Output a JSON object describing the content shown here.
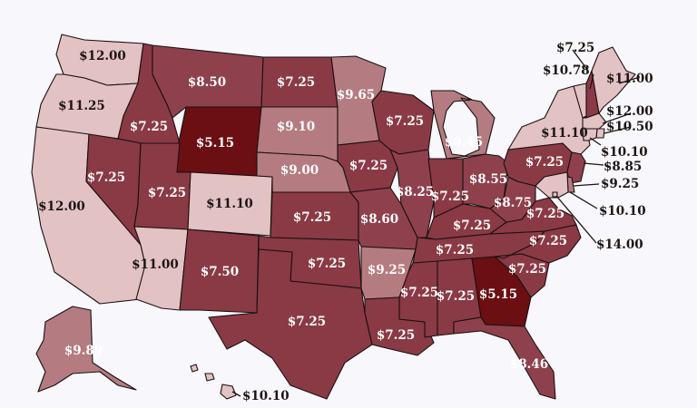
{
  "title_fragment": "",
  "colors": {
    "band_5_15": "#6b0f12",
    "band_7": "#8a3a45",
    "band_8": "#8e414c",
    "band_9": "#b47c80",
    "band_10_plus": "#e3c2c4",
    "background": "#f8f7fb",
    "border": "#1a1010"
  },
  "states": [
    {
      "id": "WA",
      "wage": "$12.00"
    },
    {
      "id": "OR",
      "wage": "$11.25"
    },
    {
      "id": "CA",
      "wage": "$12.00"
    },
    {
      "id": "ID",
      "wage": "$7.25"
    },
    {
      "id": "NV",
      "wage": "$7.25"
    },
    {
      "id": "MT",
      "wage": "$8.50"
    },
    {
      "id": "WY",
      "wage": "$5.15"
    },
    {
      "id": "UT",
      "wage": "$7.25"
    },
    {
      "id": "CO",
      "wage": "$11.10"
    },
    {
      "id": "AZ",
      "wage": "$11.00"
    },
    {
      "id": "NM",
      "wage": "$7.50"
    },
    {
      "id": "ND",
      "wage": "$7.25"
    },
    {
      "id": "SD",
      "wage": "$9.10"
    },
    {
      "id": "NE",
      "wage": "$9.00"
    },
    {
      "id": "KS",
      "wage": "$7.25"
    },
    {
      "id": "OK",
      "wage": "$7.25"
    },
    {
      "id": "TX",
      "wage": "$7.25"
    },
    {
      "id": "MN",
      "wage": "$9.65"
    },
    {
      "id": "IA",
      "wage": "$7.25"
    },
    {
      "id": "MO",
      "wage": "$8.60"
    },
    {
      "id": "AR",
      "wage": "$9.25"
    },
    {
      "id": "LA",
      "wage": "$7.25"
    },
    {
      "id": "WI",
      "wage": "$7.25"
    },
    {
      "id": "IL",
      "wage": "$8.25"
    },
    {
      "id": "MI",
      "wage": "$9.45"
    },
    {
      "id": "IN",
      "wage": "$7.25"
    },
    {
      "id": "OH",
      "wage": "$8.55"
    },
    {
      "id": "KY",
      "wage": "$7.25"
    },
    {
      "id": "TN",
      "wage": "$7.25"
    },
    {
      "id": "MS",
      "wage": "$7.25"
    },
    {
      "id": "AL",
      "wage": "$7.25"
    },
    {
      "id": "GA",
      "wage": "$5.15"
    },
    {
      "id": "FL",
      "wage": "$8.46"
    },
    {
      "id": "SC",
      "wage": "$7.25"
    },
    {
      "id": "NC",
      "wage": "$7.25"
    },
    {
      "id": "VA",
      "wage": "$7.25"
    },
    {
      "id": "WV",
      "wage": "$8.75"
    },
    {
      "id": "PA",
      "wage": "$7.25"
    },
    {
      "id": "NY",
      "wage": "$11.10"
    },
    {
      "id": "VT",
      "wage": "$10.78"
    },
    {
      "id": "NH",
      "wage": "$7.25"
    },
    {
      "id": "ME",
      "wage": "$11.00"
    },
    {
      "id": "MA",
      "wage": "$12.00"
    },
    {
      "id": "RI",
      "wage": "$10.50"
    },
    {
      "id": "CT",
      "wage": "$10.10"
    },
    {
      "id": "NJ",
      "wage": "$8.85"
    },
    {
      "id": "DE",
      "wage": "$9.25"
    },
    {
      "id": "MD",
      "wage": "$10.10"
    },
    {
      "id": "DC",
      "wage": "$14.00"
    },
    {
      "id": "AK",
      "wage": "$9.89"
    },
    {
      "id": "HI",
      "wage": "$10.10"
    }
  ]
}
